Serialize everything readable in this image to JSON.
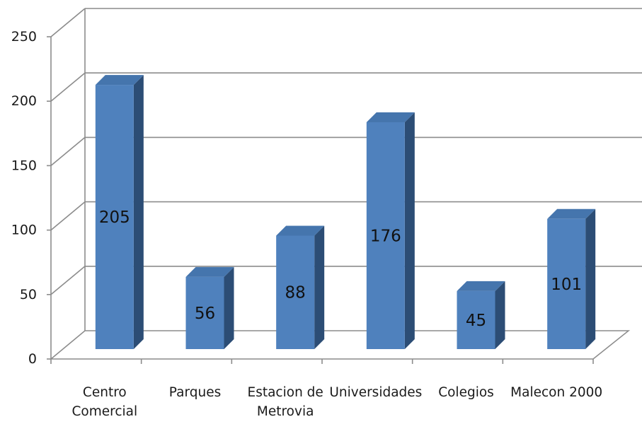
{
  "chart_data": {
    "type": "bar",
    "style": "3d-column",
    "title": "",
    "xlabel": "",
    "ylabel": "",
    "categories": [
      [
        "Centro",
        "Comercial"
      ],
      [
        "Parques"
      ],
      [
        "Estacion de",
        "Metrovia"
      ],
      [
        "Universidades"
      ],
      [
        "Colegios"
      ],
      [
        "Malecon 2000"
      ]
    ],
    "values": [
      205,
      56,
      88,
      176,
      45,
      101
    ],
    "data_labels": [
      "205",
      "56",
      "88",
      "176",
      "45",
      "101"
    ],
    "yticks": [
      0,
      50,
      100,
      150,
      200,
      250
    ],
    "ylim": [
      0,
      250
    ],
    "grid": true,
    "legend": "none",
    "colors": {
      "bar_front": "#4f81bd",
      "bar_side": "#2c4d75",
      "bar_top": "#4575ad",
      "gridline": "#8c8c8c",
      "axis": "#8c8c8c",
      "wall": "#ffffff"
    }
  }
}
